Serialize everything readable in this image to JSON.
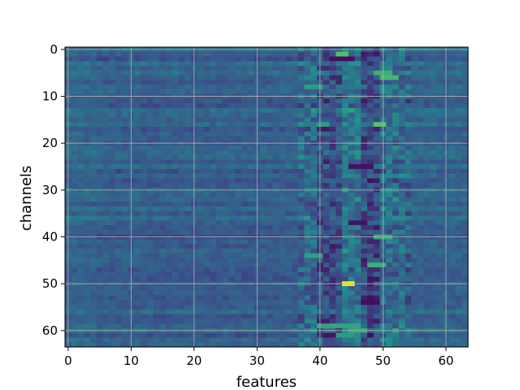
{
  "chart_data": {
    "type": "heatmap",
    "title": "",
    "xlabel": "features",
    "ylabel": "channels",
    "x_ticks": [
      0,
      10,
      20,
      30,
      40,
      50,
      60
    ],
    "y_ticks": [
      0,
      10,
      20,
      30,
      40,
      50,
      60
    ],
    "xlim": [
      -0.5,
      63.5
    ],
    "ylim": [
      63.5,
      -0.5
    ],
    "n_rows": 64,
    "n_cols": 64,
    "colormap": "viridis",
    "grid": true,
    "base_value": 0.3,
    "column_bands": [
      {
        "cols": [
          0,
          4
        ],
        "delta": 0.03
      },
      {
        "cols": [
          5,
          36
        ],
        "delta": 0.0
      },
      {
        "cols": [
          37,
          39
        ],
        "delta": 0.04
      },
      {
        "cols": [
          40,
          43
        ],
        "delta": -0.06
      },
      {
        "cols": [
          44,
          46
        ],
        "delta": 0.08
      },
      {
        "cols": [
          47,
          49
        ],
        "delta": -0.08
      },
      {
        "cols": [
          50,
          53
        ],
        "delta": 0.06
      },
      {
        "cols": [
          54,
          63
        ],
        "delta": 0.02
      }
    ],
    "highlights": [
      {
        "row": 1,
        "cols": [
          43,
          44
        ],
        "value": 0.7
      },
      {
        "row": 2,
        "cols": [
          42,
          45
        ],
        "value": 0.05
      },
      {
        "row": 5,
        "cols": [
          49,
          51
        ],
        "value": 0.62
      },
      {
        "row": 6,
        "cols": [
          50,
          52
        ],
        "value": 0.66
      },
      {
        "row": 8,
        "cols": [
          38,
          40
        ],
        "value": 0.55
      },
      {
        "row": 16,
        "cols": [
          49,
          50
        ],
        "value": 0.72
      },
      {
        "row": 16,
        "cols": [
          40,
          41
        ],
        "value": 0.55
      },
      {
        "row": 25,
        "cols": [
          45,
          48
        ],
        "value": 0.05
      },
      {
        "row": 37,
        "cols": [
          45,
          47
        ],
        "value": 0.06
      },
      {
        "row": 40,
        "cols": [
          49,
          51
        ],
        "value": 0.62
      },
      {
        "row": 44,
        "cols": [
          38,
          40
        ],
        "value": 0.55
      },
      {
        "row": 46,
        "cols": [
          48,
          50
        ],
        "value": 0.62
      },
      {
        "row": 50,
        "cols": [
          44,
          45
        ],
        "value": 1.0
      },
      {
        "row": 54,
        "cols": [
          47,
          49
        ],
        "value": 0.04
      },
      {
        "row": 59,
        "cols": [
          40,
          46
        ],
        "value": 0.58
      },
      {
        "row": 60,
        "cols": [
          45,
          47
        ],
        "value": 0.6
      },
      {
        "row": 61,
        "cols": [
          43,
          45
        ],
        "value": 0.55
      }
    ]
  }
}
